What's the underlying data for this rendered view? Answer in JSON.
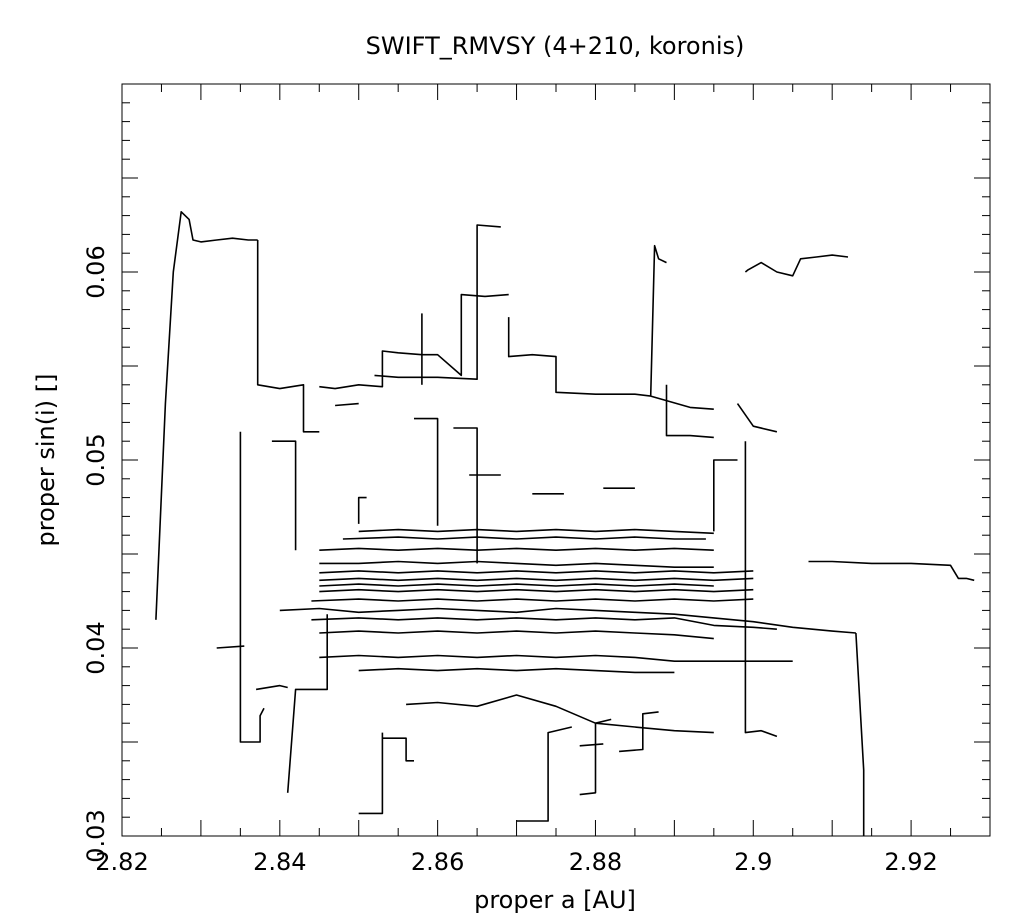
{
  "chart_data": {
    "type": "line",
    "title": "SWIFT_RMVSY (4+210, koronis)",
    "xlabel": "proper a [AU]",
    "ylabel": "proper sin(i) []",
    "xlim": [
      2.82,
      2.93
    ],
    "ylim": [
      0.03,
      0.07
    ],
    "xticks": [
      2.82,
      2.84,
      2.86,
      2.88,
      2.9,
      2.92
    ],
    "xtick_labels": [
      "2.82",
      "2.84",
      "2.86",
      "2.88",
      "2.9",
      "2.92"
    ],
    "yticks": [
      0.03,
      0.04,
      0.05,
      0.06
    ],
    "ytick_labels": [
      "0.03",
      "0.04",
      "0.05",
      "0.06"
    ],
    "grid": false,
    "line_color": "#000000",
    "series": [
      {
        "x": [
          2.8243,
          2.8255,
          2.8265,
          2.8275,
          2.8285,
          2.829,
          2.83,
          2.832,
          2.834,
          2.836,
          2.8372
        ],
        "y": [
          0.0415,
          0.053,
          0.06,
          0.0632,
          0.0628,
          0.0617,
          0.0616,
          0.0617,
          0.0618,
          0.0617,
          0.0617
        ]
      },
      {
        "x": [
          2.8372,
          2.8372,
          2.84,
          2.843,
          2.843,
          2.845
        ],
        "y": [
          0.0617,
          0.054,
          0.0538,
          0.054,
          0.0515,
          0.0515
        ]
      },
      {
        "x": [
          2.835,
          2.835,
          2.8375,
          2.8375,
          2.838
        ],
        "y": [
          0.0515,
          0.035,
          0.035,
          0.0364,
          0.0368
        ]
      },
      {
        "x": [
          2.837,
          2.84,
          2.841
        ],
        "y": [
          0.0378,
          0.038,
          0.0379
        ]
      },
      {
        "x": [
          2.841,
          2.842,
          2.844,
          2.846,
          2.846
        ],
        "y": [
          0.0323,
          0.0378,
          0.0378,
          0.0378,
          0.0418
        ]
      },
      {
        "x": [
          2.832,
          2.8355
        ],
        "y": [
          0.04,
          0.0401
        ]
      },
      {
        "x": [
          2.845,
          2.847,
          2.85,
          2.853,
          2.853,
          2.855,
          2.858,
          2.86,
          2.863,
          2.863,
          2.866,
          2.869
        ],
        "y": [
          0.0539,
          0.0538,
          0.054,
          0.0539,
          0.0558,
          0.0557,
          0.0556,
          0.0556,
          0.0545,
          0.0588,
          0.0587,
          0.0588
        ]
      },
      {
        "x": [
          2.852,
          2.855,
          2.86,
          2.865,
          2.865,
          2.868
        ],
        "y": [
          0.0545,
          0.0544,
          0.0544,
          0.0543,
          0.0625,
          0.0624
        ]
      },
      {
        "x": [
          2.869,
          2.869,
          2.872,
          2.875,
          2.875,
          2.88,
          2.885,
          2.887
        ],
        "y": [
          0.0576,
          0.0555,
          0.0556,
          0.0555,
          0.0536,
          0.0535,
          0.0535,
          0.0534
        ]
      },
      {
        "x": [
          2.887,
          2.8875,
          2.888,
          2.889
        ],
        "y": [
          0.0534,
          0.0614,
          0.0607,
          0.0605
        ]
      },
      {
        "x": [
          2.887,
          2.892,
          2.895
        ],
        "y": [
          0.0534,
          0.0528,
          0.0527
        ]
      },
      {
        "x": [
          2.899,
          2.8993,
          2.901,
          2.903,
          2.905,
          2.906,
          2.908,
          2.91,
          2.912
        ],
        "y": [
          0.06,
          0.0601,
          0.0605,
          0.06,
          0.0598,
          0.0607,
          0.0608,
          0.0609,
          0.0608
        ]
      },
      {
        "x": [
          2.898,
          2.9,
          2.903
        ],
        "y": [
          0.053,
          0.0518,
          0.0515
        ]
      },
      {
        "x": [
          2.899,
          2.899,
          2.901,
          2.903
        ],
        "y": [
          0.051,
          0.0355,
          0.0356,
          0.0353
        ]
      },
      {
        "x": [
          2.84,
          2.845,
          2.85,
          2.855,
          2.86,
          2.865,
          2.87,
          2.875,
          2.88,
          2.885,
          2.89,
          2.895,
          2.9,
          2.905,
          2.91,
          2.913
        ],
        "y": [
          0.042,
          0.0421,
          0.0419,
          0.042,
          0.0421,
          0.042,
          0.0419,
          0.0421,
          0.042,
          0.0419,
          0.0418,
          0.0416,
          0.0414,
          0.0411,
          0.0409,
          0.0408
        ]
      },
      {
        "x": [
          2.913,
          2.914,
          2.914
        ],
        "y": [
          0.0408,
          0.0335,
          0.03
        ]
      },
      {
        "x": [
          2.907,
          2.91,
          2.915,
          2.92,
          2.925,
          2.926,
          2.927,
          2.928
        ],
        "y": [
          0.0446,
          0.0446,
          0.0445,
          0.0445,
          0.0444,
          0.0437,
          0.0437,
          0.0436
        ]
      },
      {
        "x": [
          2.845,
          2.85,
          2.855,
          2.86,
          2.865,
          2.87,
          2.875,
          2.88,
          2.885,
          2.89,
          2.895,
          2.9
        ],
        "y": [
          0.0436,
          0.0437,
          0.0436,
          0.0437,
          0.0436,
          0.0437,
          0.0436,
          0.0437,
          0.0436,
          0.0437,
          0.0436,
          0.0437
        ]
      },
      {
        "x": [
          2.845,
          2.85,
          2.855,
          2.86,
          2.865,
          2.87,
          2.875,
          2.88,
          2.885,
          2.89,
          2.895,
          2.9
        ],
        "y": [
          0.043,
          0.0431,
          0.043,
          0.0431,
          0.043,
          0.0431,
          0.043,
          0.0431,
          0.043,
          0.0431,
          0.043,
          0.0431
        ]
      },
      {
        "x": [
          2.844,
          2.85,
          2.855,
          2.86,
          2.865,
          2.87,
          2.875,
          2.88,
          2.885,
          2.89,
          2.895,
          2.9
        ],
        "y": [
          0.0425,
          0.0426,
          0.0425,
          0.0426,
          0.0425,
          0.0426,
          0.0425,
          0.0426,
          0.0425,
          0.0426,
          0.0425,
          0.0426
        ]
      },
      {
        "x": [
          2.845,
          2.85,
          2.855,
          2.86,
          2.865,
          2.87,
          2.875,
          2.88,
          2.885,
          2.89,
          2.895,
          2.9
        ],
        "y": [
          0.044,
          0.0441,
          0.044,
          0.0441,
          0.044,
          0.0441,
          0.044,
          0.0441,
          0.044,
          0.0441,
          0.044,
          0.0441
        ]
      },
      {
        "x": [
          2.845,
          2.85,
          2.855,
          2.86,
          2.865,
          2.87,
          2.875,
          2.88,
          2.885,
          2.89,
          2.895
        ],
        "y": [
          0.0433,
          0.0434,
          0.0433,
          0.0434,
          0.0433,
          0.0434,
          0.0433,
          0.0434,
          0.0433,
          0.0434,
          0.0433
        ]
      },
      {
        "x": [
          2.845,
          2.85,
          2.855,
          2.86,
          2.865,
          2.87,
          2.875,
          2.88,
          2.885,
          2.89,
          2.895
        ],
        "y": [
          0.0445,
          0.0445,
          0.0446,
          0.0445,
          0.0446,
          0.0445,
          0.0444,
          0.0445,
          0.0444,
          0.0443,
          0.0443
        ]
      },
      {
        "x": [
          2.845,
          2.85,
          2.855,
          2.86,
          2.865,
          2.87,
          2.875,
          2.88,
          2.885,
          2.89,
          2.895
        ],
        "y": [
          0.0452,
          0.0453,
          0.0452,
          0.0453,
          0.0452,
          0.0453,
          0.0452,
          0.0453,
          0.0452,
          0.0453,
          0.0452
        ]
      },
      {
        "x": [
          2.85,
          2.855,
          2.86,
          2.865,
          2.87,
          2.875,
          2.88,
          2.885,
          2.89,
          2.895
        ],
        "y": [
          0.0462,
          0.0463,
          0.0462,
          0.0463,
          0.0462,
          0.0463,
          0.0462,
          0.0463,
          0.0462,
          0.0461
        ]
      },
      {
        "x": [
          2.848,
          2.855,
          2.86,
          2.865,
          2.87,
          2.875,
          2.88,
          2.885,
          2.89,
          2.894
        ],
        "y": [
          0.0458,
          0.0459,
          0.0458,
          0.0459,
          0.0458,
          0.0459,
          0.0458,
          0.0459,
          0.0458,
          0.0458
        ]
      },
      {
        "x": [
          2.844,
          2.85,
          2.855,
          2.86,
          2.865,
          2.87,
          2.875,
          2.88,
          2.885,
          2.89,
          2.895,
          2.9,
          2.903
        ],
        "y": [
          0.0415,
          0.0416,
          0.0415,
          0.0416,
          0.0415,
          0.0416,
          0.0415,
          0.0416,
          0.0415,
          0.0416,
          0.0412,
          0.0411,
          0.041
        ]
      },
      {
        "x": [
          2.845,
          2.85,
          2.855,
          2.86,
          2.865,
          2.87,
          2.875,
          2.88,
          2.885,
          2.89,
          2.895
        ],
        "y": [
          0.0408,
          0.0409,
          0.0408,
          0.0409,
          0.0408,
          0.0409,
          0.0408,
          0.0409,
          0.0408,
          0.0407,
          0.0405
        ]
      },
      {
        "x": [
          2.845,
          2.85,
          2.855,
          2.86,
          2.865,
          2.87,
          2.875,
          2.88,
          2.885,
          2.89,
          2.895,
          2.9,
          2.905
        ],
        "y": [
          0.0395,
          0.0396,
          0.0395,
          0.0396,
          0.0395,
          0.0396,
          0.0395,
          0.0396,
          0.0395,
          0.0393,
          0.0393,
          0.0393,
          0.0393
        ]
      },
      {
        "x": [
          2.85,
          2.855,
          2.86,
          2.865,
          2.87,
          2.875,
          2.88,
          2.885,
          2.89
        ],
        "y": [
          0.0388,
          0.0389,
          0.0388,
          0.0389,
          0.0388,
          0.0389,
          0.0388,
          0.0387,
          0.0387
        ]
      },
      {
        "x": [
          2.856,
          2.86,
          2.865,
          2.87,
          2.875,
          2.88,
          2.885,
          2.89,
          2.895
        ],
        "y": [
          0.037,
          0.0371,
          0.0369,
          0.0375,
          0.0369,
          0.036,
          0.0358,
          0.0356,
          0.0355
        ]
      },
      {
        "x": [
          2.85,
          2.853,
          2.853
        ],
        "y": [
          0.0312,
          0.0312,
          0.0355
        ]
      },
      {
        "x": [
          2.853,
          2.856,
          2.856,
          2.857
        ],
        "y": [
          0.0352,
          0.0352,
          0.034,
          0.034
        ]
      },
      {
        "x": [
          2.87,
          2.874,
          2.874,
          2.877
        ],
        "y": [
          0.0308,
          0.0308,
          0.0355,
          0.0358
        ]
      },
      {
        "x": [
          2.878,
          2.88,
          2.88,
          2.882
        ],
        "y": [
          0.0322,
          0.0323,
          0.036,
          0.0362
        ]
      },
      {
        "x": [
          2.878,
          2.881
        ],
        "y": [
          0.0348,
          0.0349
        ]
      },
      {
        "x": [
          2.883,
          2.886,
          2.886,
          2.888
        ],
        "y": [
          0.0345,
          0.0346,
          0.0365,
          0.0366
        ]
      },
      {
        "x": [
          2.889,
          2.889,
          2.892,
          2.895
        ],
        "y": [
          0.054,
          0.0513,
          0.0513,
          0.0512
        ]
      },
      {
        "x": [
          2.895,
          2.895,
          2.898
        ],
        "y": [
          0.0462,
          0.05,
          0.05
        ]
      },
      {
        "x": [
          2.847,
          2.85
        ],
        "y": [
          0.0529,
          0.053
        ]
      },
      {
        "x": [
          2.85,
          2.85,
          2.851
        ],
        "y": [
          0.0466,
          0.048,
          0.048
        ]
      },
      {
        "x": [
          2.864,
          2.868
        ],
        "y": [
          0.0492,
          0.0492
        ]
      },
      {
        "x": [
          2.872,
          2.876
        ],
        "y": [
          0.0482,
          0.0482
        ]
      },
      {
        "x": [
          2.881,
          2.885
        ],
        "y": [
          0.0485,
          0.0485
        ]
      },
      {
        "x": [
          2.839,
          2.842,
          2.842
        ],
        "y": [
          0.051,
          0.051,
          0.0452
        ]
      },
      {
        "x": [
          2.857,
          2.86,
          2.86
        ],
        "y": [
          0.0522,
          0.0522,
          0.0465
        ]
      },
      {
        "x": [
          2.862,
          2.865,
          2.865
        ],
        "y": [
          0.0517,
          0.0517,
          0.0445
        ]
      },
      {
        "x": [
          2.858,
          2.858
        ],
        "y": [
          0.0578,
          0.054
        ]
      }
    ]
  }
}
